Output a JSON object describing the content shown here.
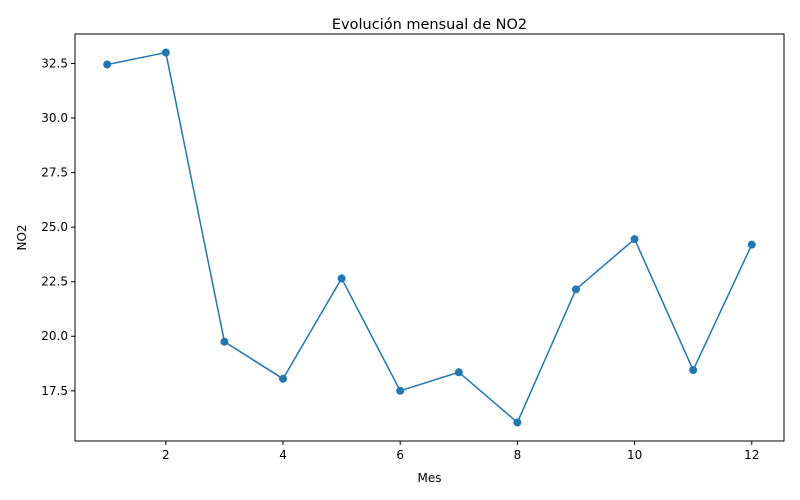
{
  "chart_data": {
    "type": "line",
    "title": "Evolución mensual de NO2",
    "xlabel": "Mes",
    "ylabel": "NO2",
    "x": [
      1,
      2,
      3,
      4,
      5,
      6,
      7,
      8,
      9,
      10,
      11,
      12
    ],
    "series": [
      {
        "values": [
          32.45,
          33.0,
          19.75,
          18.05,
          22.65,
          17.5,
          18.35,
          16.05,
          22.15,
          24.45,
          18.45,
          24.2
        ],
        "color": "#1f77b4",
        "marker": "circle"
      }
    ],
    "xlim": [
      0.45,
      12.55
    ],
    "ylim": [
      15.2,
      33.85
    ],
    "xticks": [
      2,
      4,
      6,
      8,
      10,
      12
    ],
    "xtick_labels": [
      "2",
      "4",
      "6",
      "8",
      "10",
      "12"
    ],
    "yticks": [
      17.5,
      20.0,
      22.5,
      25.0,
      27.5,
      30.0,
      32.5
    ],
    "ytick_labels": [
      "17.5",
      "20.0",
      "22.5",
      "25.0",
      "27.5",
      "30.0",
      "32.5"
    ],
    "grid": false,
    "legend": "none"
  }
}
